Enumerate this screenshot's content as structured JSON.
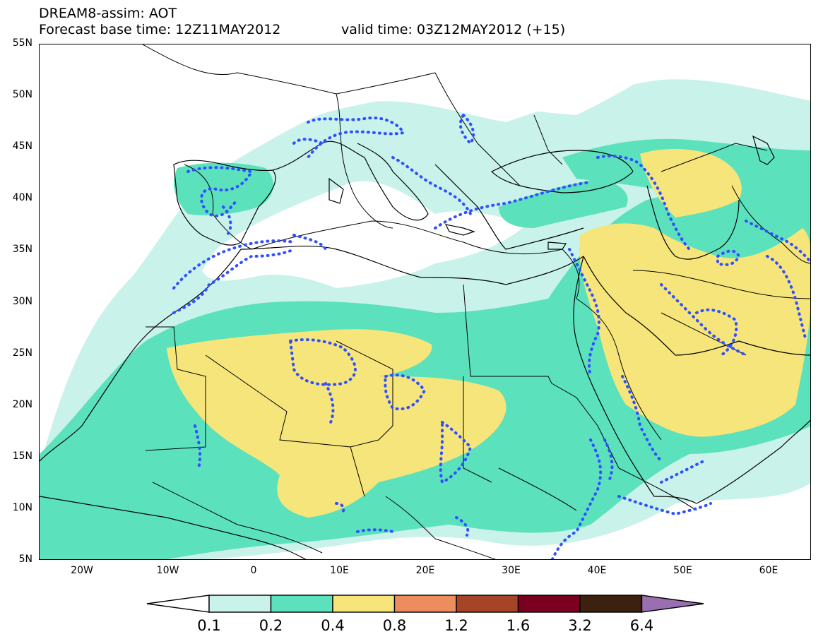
{
  "header": {
    "line1": "DREAM8-assim: AOT",
    "base_time": "Forecast base time: 12Z11MAY2012",
    "valid_time": "valid time: 03Z12MAY2012 (+15)"
  },
  "map": {
    "region": "North Africa, Mediterranean, Middle East",
    "lon_range": [
      -25,
      65
    ],
    "lat_range": [
      5,
      55
    ],
    "y_ticks": [
      "55N",
      "50N",
      "45N",
      "40N",
      "35N",
      "30N",
      "25N",
      "20N",
      "15N",
      "10N",
      "5N"
    ],
    "x_ticks": [
      "20W",
      "10W",
      "0",
      "10E",
      "20E",
      "30E",
      "40E",
      "50E",
      "60E"
    ],
    "fields": [
      "aerosol optical thickness (shaded)",
      "assimilation contour (blue dotted)"
    ]
  },
  "colorbar": {
    "labels": [
      "0.1",
      "0.2",
      "0.4",
      "0.8",
      "1.2",
      "1.6",
      "3.2",
      "6.4"
    ],
    "colors": {
      "below": "#ffffff",
      "c1": "#c8f2ea",
      "c2": "#5ce1bd",
      "c3": "#f6e57a",
      "c4": "#ed8c5c",
      "c5": "#a64428",
      "c6": "#7a0020",
      "c7": "#3c2010",
      "above": "#9a6fb0"
    }
  },
  "style": {
    "contour_color": "#3050ff",
    "coast_color": "#000000"
  }
}
